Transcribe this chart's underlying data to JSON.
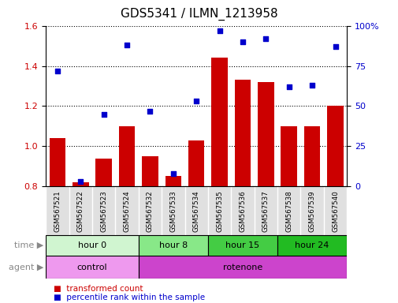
{
  "title": "GDS5341 / ILMN_1213958",
  "samples": [
    "GSM567521",
    "GSM567522",
    "GSM567523",
    "GSM567524",
    "GSM567532",
    "GSM567533",
    "GSM567534",
    "GSM567535",
    "GSM567536",
    "GSM567537",
    "GSM567538",
    "GSM567539",
    "GSM567540"
  ],
  "transformed_count": [
    1.04,
    0.82,
    0.94,
    1.1,
    0.95,
    0.85,
    1.03,
    1.44,
    1.33,
    1.32,
    1.1,
    1.1,
    1.2
  ],
  "percentile_rank": [
    72,
    3,
    45,
    88,
    47,
    8,
    53,
    97,
    90,
    92,
    62,
    63,
    87
  ],
  "bar_color": "#cc0000",
  "dot_color": "#0000cc",
  "ylim_left": [
    0.8,
    1.6
  ],
  "ylim_right": [
    0,
    100
  ],
  "yticks_left": [
    0.8,
    1.0,
    1.2,
    1.4,
    1.6
  ],
  "yticks_right": [
    0,
    25,
    50,
    75,
    100
  ],
  "ytick_labels_right": [
    "0",
    "25",
    "50",
    "75",
    "100%"
  ],
  "time_groups": [
    {
      "label": "hour 0",
      "start": 0,
      "end": 4,
      "color": "#d0f5d0"
    },
    {
      "label": "hour 8",
      "start": 4,
      "end": 7,
      "color": "#88e888"
    },
    {
      "label": "hour 15",
      "start": 7,
      "end": 10,
      "color": "#44cc44"
    },
    {
      "label": "hour 24",
      "start": 10,
      "end": 13,
      "color": "#22bb22"
    }
  ],
  "agent_groups": [
    {
      "label": "control",
      "start": 0,
      "end": 4,
      "color": "#ee99ee"
    },
    {
      "label": "rotenone",
      "start": 4,
      "end": 13,
      "color": "#cc44cc"
    }
  ],
  "time_label": "time",
  "agent_label": "agent",
  "legend_red": "transformed count",
  "legend_blue": "percentile rank within the sample",
  "title_fontsize": 11,
  "tick_fontsize": 8,
  "bar_width": 0.7
}
